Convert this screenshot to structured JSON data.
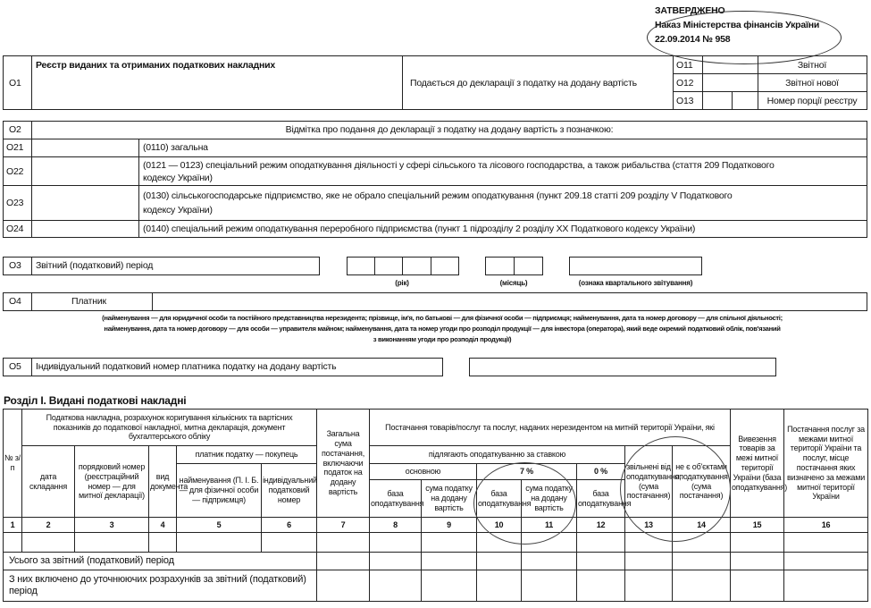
{
  "approval": {
    "line1": "ЗАТВЕРДЖЕНО",
    "line2": "Наказ Міністерства фінансів України",
    "line3": "22.09.2014 № 958"
  },
  "o1": {
    "code": "О1",
    "title": "Реєстр виданих та отриманих податкових накладних",
    "submitted": "Подається до декларації з податку на додану вартість",
    "rows": [
      {
        "code": "О11",
        "label": "Звітної"
      },
      {
        "code": "О12",
        "label": "Звітної нової"
      },
      {
        "code": "О13",
        "label": "Номер порції реєстру"
      }
    ]
  },
  "o2": {
    "code": "О2",
    "title": "Відмітка про подання до декларації з податку на додану вартість з позначкою:",
    "rows": [
      {
        "code": "О21",
        "text": "(0110) загальна"
      },
      {
        "code": "О22",
        "text": "(0121 — 0123) спеціальний режим оподаткування діяльності у сфері сільського та лісового господарства, а також рибальства (стаття 209 Податкового",
        "text2": "кодексу України)"
      },
      {
        "code": "О23",
        "text": "(0130) сільськогосподарське підприємство, яке не обрало спеціальний режим оподаткування (пункт 209.18 статті 209 розділу V Податкового",
        "text2": "кодексу України)"
      },
      {
        "code": "О24",
        "text": "(0140) спеціальний режим оподаткування переробного підприємства (пункт 1 підрозділу 2 розділу XX Податкового кодексу України)"
      }
    ]
  },
  "o3": {
    "code": "О3",
    "label": "Звітний (податковий) період",
    "year": "(рік)",
    "month": "(місяць)",
    "quarter": "(ознака квартального звітування)"
  },
  "o4": {
    "code": "О4",
    "label": "Платник",
    "note1": "(найменування — для юридичної особи та постійного представництва нерезидента; прізвище, ім'я, по батькові — для фізичної особи — підприємця; найменування, дата та номер договору — для спільної діяльності;",
    "note2": "найменування, дата та номер договору — для особи — управителя майном; найменування, дата та номер угоди про розподіл продукції — для інвестора (оператора), який веде окремий податковий облік, пов'язаний",
    "note3": "з виконанням угоди про розподіл продукції)"
  },
  "o5": {
    "code": "О5",
    "label": "Індивідуальний податковий номер платника податку на додану вартість"
  },
  "section": {
    "title": "Розділ I. Видані податкові накладні",
    "h": {
      "num": "№ з/п",
      "doc": "Податкова накладна, розрахунок коригування кількісних та вартісних показників до податкової накладної, митна декларація, документ бухгалтерського обліку",
      "date": "дата складання",
      "regnum": "порядковий номер (реєстраційний номер — для митної декларації)",
      "kind": "вид документа",
      "buyer": "платник податку — покупець",
      "name": "найменування (П. І. Б. — для фізичної особи — підприємця)",
      "ipn": "індивідуальний податковий номер",
      "total": "Загальна сума постачання, включаючи податок на додану вартість",
      "supply": "Постачання товарів/послуг та послуг, наданих нерезидентом на митній території України, які",
      "taxed": "підлягають оподаткуванню за ставкою",
      "basic": "основною",
      "r7": "7 %",
      "r0": "0 %",
      "base": "база оподаткування",
      "vat": "сума податку на додану вартість",
      "exempt": "звільнені від оподаткування, (сума постачання)",
      "notobj": "не є об'єктами оподаткування (сума постачання)",
      "export": "Вивезення товарів за межі митної території України (база оподаткування)",
      "abroad": "Постачання послуг за межами митної території України та послуг, місце постачання яких визначено за межами митної території України"
    },
    "colnums": [
      "1",
      "2",
      "3",
      "4",
      "5",
      "6",
      "7",
      "8",
      "9",
      "10",
      "11",
      "12",
      "13",
      "14",
      "15",
      "16"
    ],
    "total_row": "Усього за звітний (податковий) період",
    "incl_row": "З них включено до уточнюючих розрахунків за звітний (податковий) період"
  }
}
